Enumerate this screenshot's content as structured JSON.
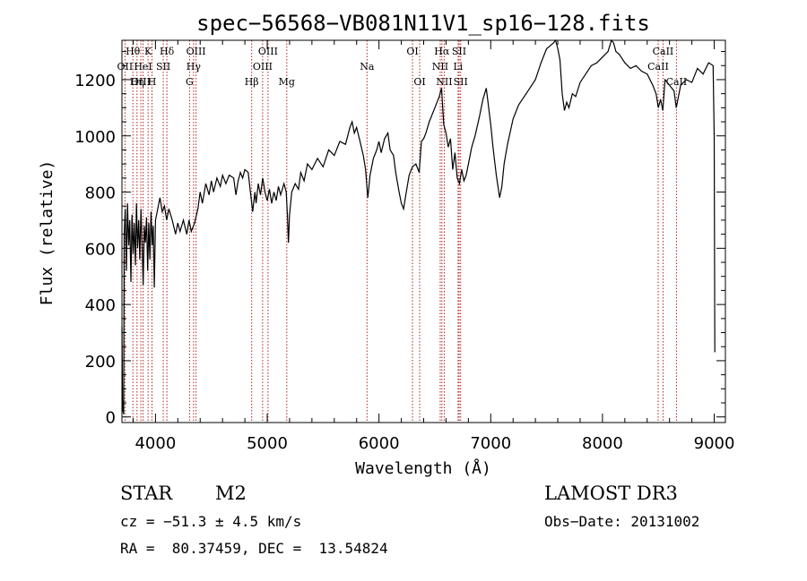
{
  "chart_data": {
    "type": "line",
    "title": "spec−56568−VB081N11V1_sp16−128.fits",
    "xlabel": "Wavelength (Å)",
    "ylabel": "Flux (relative)",
    "xlim": [
      3700,
      9100
    ],
    "ylim": [
      -20,
      1340
    ],
    "x_ticks": [
      4000,
      5000,
      6000,
      7000,
      8000,
      9000
    ],
    "y_ticks": [
      0,
      200,
      400,
      600,
      800,
      1000,
      1200
    ],
    "spectrum": [
      [
        3700,
        320
      ],
      [
        3705,
        60
      ],
      [
        3710,
        20
      ],
      [
        3715,
        10
      ],
      [
        3720,
        650
      ],
      [
        3730,
        740
      ],
      [
        3740,
        520
      ],
      [
        3750,
        760
      ],
      [
        3760,
        610
      ],
      [
        3770,
        700
      ],
      [
        3780,
        480
      ],
      [
        3790,
        720
      ],
      [
        3800,
        580
      ],
      [
        3810,
        690
      ],
      [
        3820,
        540
      ],
      [
        3830,
        760
      ],
      [
        3840,
        600
      ],
      [
        3850,
        700
      ],
      [
        3860,
        560
      ],
      [
        3870,
        740
      ],
      [
        3880,
        620
      ],
      [
        3890,
        470
      ],
      [
        3900,
        680
      ],
      [
        3910,
        620
      ],
      [
        3920,
        710
      ],
      [
        3930,
        520
      ],
      [
        3940,
        690
      ],
      [
        3950,
        560
      ],
      [
        3960,
        730
      ],
      [
        3970,
        610
      ],
      [
        3980,
        680
      ],
      [
        3990,
        460
      ],
      [
        4000,
        700
      ],
      [
        4020,
        740
      ],
      [
        4040,
        780
      ],
      [
        4060,
        730
      ],
      [
        4080,
        750
      ],
      [
        4100,
        700
      ],
      [
        4120,
        740
      ],
      [
        4150,
        700
      ],
      [
        4180,
        650
      ],
      [
        4200,
        690
      ],
      [
        4220,
        660
      ],
      [
        4250,
        700
      ],
      [
        4280,
        650
      ],
      [
        4300,
        700
      ],
      [
        4320,
        660
      ],
      [
        4350,
        690
      ],
      [
        4380,
        740
      ],
      [
        4400,
        800
      ],
      [
        4420,
        760
      ],
      [
        4450,
        830
      ],
      [
        4480,
        790
      ],
      [
        4500,
        840
      ],
      [
        4520,
        800
      ],
      [
        4550,
        850
      ],
      [
        4580,
        820
      ],
      [
        4600,
        860
      ],
      [
        4630,
        830
      ],
      [
        4660,
        860
      ],
      [
        4700,
        850
      ],
      [
        4720,
        790
      ],
      [
        4740,
        840
      ],
      [
        4760,
        870
      ],
      [
        4780,
        850
      ],
      [
        4800,
        880
      ],
      [
        4830,
        870
      ],
      [
        4850,
        800
      ],
      [
        4870,
        730
      ],
      [
        4890,
        800
      ],
      [
        4900,
        760
      ],
      [
        4920,
        830
      ],
      [
        4940,
        790
      ],
      [
        4960,
        850
      ],
      [
        4980,
        800
      ],
      [
        5000,
        770
      ],
      [
        5020,
        810
      ],
      [
        5040,
        760
      ],
      [
        5060,
        800
      ],
      [
        5080,
        770
      ],
      [
        5100,
        820
      ],
      [
        5120,
        790
      ],
      [
        5150,
        830
      ],
      [
        5170,
        800
      ],
      [
        5180,
        720
      ],
      [
        5190,
        620
      ],
      [
        5200,
        720
      ],
      [
        5220,
        800
      ],
      [
        5250,
        830
      ],
      [
        5280,
        810
      ],
      [
        5300,
        870
      ],
      [
        5330,
        840
      ],
      [
        5360,
        900
      ],
      [
        5400,
        880
      ],
      [
        5450,
        920
      ],
      [
        5500,
        890
      ],
      [
        5550,
        950
      ],
      [
        5600,
        930
      ],
      [
        5650,
        980
      ],
      [
        5700,
        970
      ],
      [
        5720,
        1000
      ],
      [
        5740,
        1030
      ],
      [
        5760,
        1050
      ],
      [
        5780,
        1010
      ],
      [
        5800,
        1030
      ],
      [
        5830,
        980
      ],
      [
        5860,
        930
      ],
      [
        5880,
        880
      ],
      [
        5900,
        780
      ],
      [
        5920,
        860
      ],
      [
        5950,
        920
      ],
      [
        5980,
        950
      ],
      [
        6000,
        980
      ],
      [
        6020,
        940
      ],
      [
        6050,
        990
      ],
      [
        6080,
        1010
      ],
      [
        6100,
        950
      ],
      [
        6130,
        930
      ],
      [
        6150,
        870
      ],
      [
        6180,
        800
      ],
      [
        6200,
        760
      ],
      [
        6220,
        740
      ],
      [
        6240,
        790
      ],
      [
        6270,
        860
      ],
      [
        6300,
        890
      ],
      [
        6330,
        900
      ],
      [
        6360,
        870
      ],
      [
        6380,
        980
      ],
      [
        6400,
        990
      ],
      [
        6420,
        1010
      ],
      [
        6450,
        1050
      ],
      [
        6480,
        1080
      ],
      [
        6510,
        1110
      ],
      [
        6540,
        1140
      ],
      [
        6560,
        1170
      ],
      [
        6580,
        1040
      ],
      [
        6600,
        1010
      ],
      [
        6620,
        960
      ],
      [
        6640,
        990
      ],
      [
        6660,
        880
      ],
      [
        6680,
        940
      ],
      [
        6700,
        850
      ],
      [
        6720,
        830
      ],
      [
        6740,
        880
      ],
      [
        6760,
        840
      ],
      [
        6780,
        860
      ],
      [
        6800,
        900
      ],
      [
        6830,
        960
      ],
      [
        6860,
        1000
      ],
      [
        6900,
        1070
      ],
      [
        6930,
        1130
      ],
      [
        6960,
        1170
      ],
      [
        7000,
        1040
      ],
      [
        7020,
        960
      ],
      [
        7050,
        860
      ],
      [
        7080,
        780
      ],
      [
        7100,
        820
      ],
      [
        7120,
        900
      ],
      [
        7150,
        970
      ],
      [
        7200,
        1060
      ],
      [
        7250,
        1110
      ],
      [
        7300,
        1140
      ],
      [
        7350,
        1170
      ],
      [
        7400,
        1200
      ],
      [
        7450,
        1260
      ],
      [
        7500,
        1310
      ],
      [
        7530,
        1320
      ],
      [
        7560,
        1330
      ],
      [
        7580,
        1350
      ],
      [
        7600,
        1310
      ],
      [
        7620,
        1270
      ],
      [
        7640,
        1150
      ],
      [
        7660,
        1090
      ],
      [
        7680,
        1120
      ],
      [
        7700,
        1100
      ],
      [
        7730,
        1150
      ],
      [
        7760,
        1140
      ],
      [
        7800,
        1190
      ],
      [
        7850,
        1220
      ],
      [
        7900,
        1250
      ],
      [
        7950,
        1260
      ],
      [
        8000,
        1280
      ],
      [
        8050,
        1300
      ],
      [
        8080,
        1340
      ],
      [
        8100,
        1330
      ],
      [
        8120,
        1300
      ],
      [
        8150,
        1290
      ],
      [
        8200,
        1260
      ],
      [
        8250,
        1240
      ],
      [
        8300,
        1250
      ],
      [
        8350,
        1230
      ],
      [
        8400,
        1220
      ],
      [
        8450,
        1180
      ],
      [
        8480,
        1150
      ],
      [
        8500,
        1100
      ],
      [
        8520,
        1130
      ],
      [
        8540,
        1090
      ],
      [
        8560,
        1200
      ],
      [
        8600,
        1180
      ],
      [
        8640,
        1160
      ],
      [
        8660,
        1100
      ],
      [
        8700,
        1180
      ],
      [
        8750,
        1200
      ],
      [
        8800,
        1190
      ],
      [
        8850,
        1240
      ],
      [
        8900,
        1220
      ],
      [
        8950,
        1260
      ],
      [
        8990,
        1250
      ],
      [
        9000,
        1000
      ],
      [
        9005,
        230
      ]
    ],
    "emission_lines": [
      {
        "label": "Hθ",
        "x": 3798,
        "row": 0
      },
      {
        "label": "OII",
        "x": 3727,
        "row": 1
      },
      {
        "label": "OIII",
        "x": 3869,
        "row": 2
      },
      {
        "label": "Hη",
        "x": 3835,
        "row": 2
      },
      {
        "label": "K",
        "x": 3934,
        "row": 0
      },
      {
        "label": "HeI",
        "x": 3889,
        "row": 1
      },
      {
        "label": "Hδ",
        "x": 4102,
        "row": 0
      },
      {
        "label": "SII",
        "x": 4070,
        "row": 1
      },
      {
        "label": "H",
        "x": 3969,
        "row": 2
      },
      {
        "label": "OIII",
        "x": 4363,
        "row": 0
      },
      {
        "label": "Hγ",
        "x": 4341,
        "row": 1
      },
      {
        "label": "G",
        "x": 4305,
        "row": 2
      },
      {
        "label": "OIII",
        "x": 5007,
        "row": 0
      },
      {
        "label": "OIII",
        "x": 4959,
        "row": 1
      },
      {
        "label": "Hβ",
        "x": 4861,
        "row": 2
      },
      {
        "label": "Mg",
        "x": 5175,
        "row": 2
      },
      {
        "label": "Na",
        "x": 5893,
        "row": 1
      },
      {
        "label": "OI",
        "x": 6300,
        "row": 0
      },
      {
        "label": "OI",
        "x": 6364,
        "row": 2
      },
      {
        "label": "Hα",
        "x": 6563,
        "row": 0
      },
      {
        "label": "SII",
        "x": 6717,
        "row": 0
      },
      {
        "label": "NII",
        "x": 6548,
        "row": 1
      },
      {
        "label": "Li",
        "x": 6708,
        "row": 1
      },
      {
        "label": "NII",
        "x": 6584,
        "row": 2
      },
      {
        "label": "SII",
        "x": 6731,
        "row": 2
      },
      {
        "label": "CaII",
        "x": 8542,
        "row": 0
      },
      {
        "label": "CaII",
        "x": 8498,
        "row": 1
      },
      {
        "label": "CaII",
        "x": 8662,
        "row": 2
      }
    ]
  },
  "info": {
    "class_label": "STAR",
    "subclass": "M2",
    "survey": "LAMOST DR3",
    "redshift": "cz = −51.3 ± 4.5 km/s",
    "obs_date": "Obs−Date: 20131002",
    "coords": "RA =  80.37459, DEC =  13.54824"
  }
}
